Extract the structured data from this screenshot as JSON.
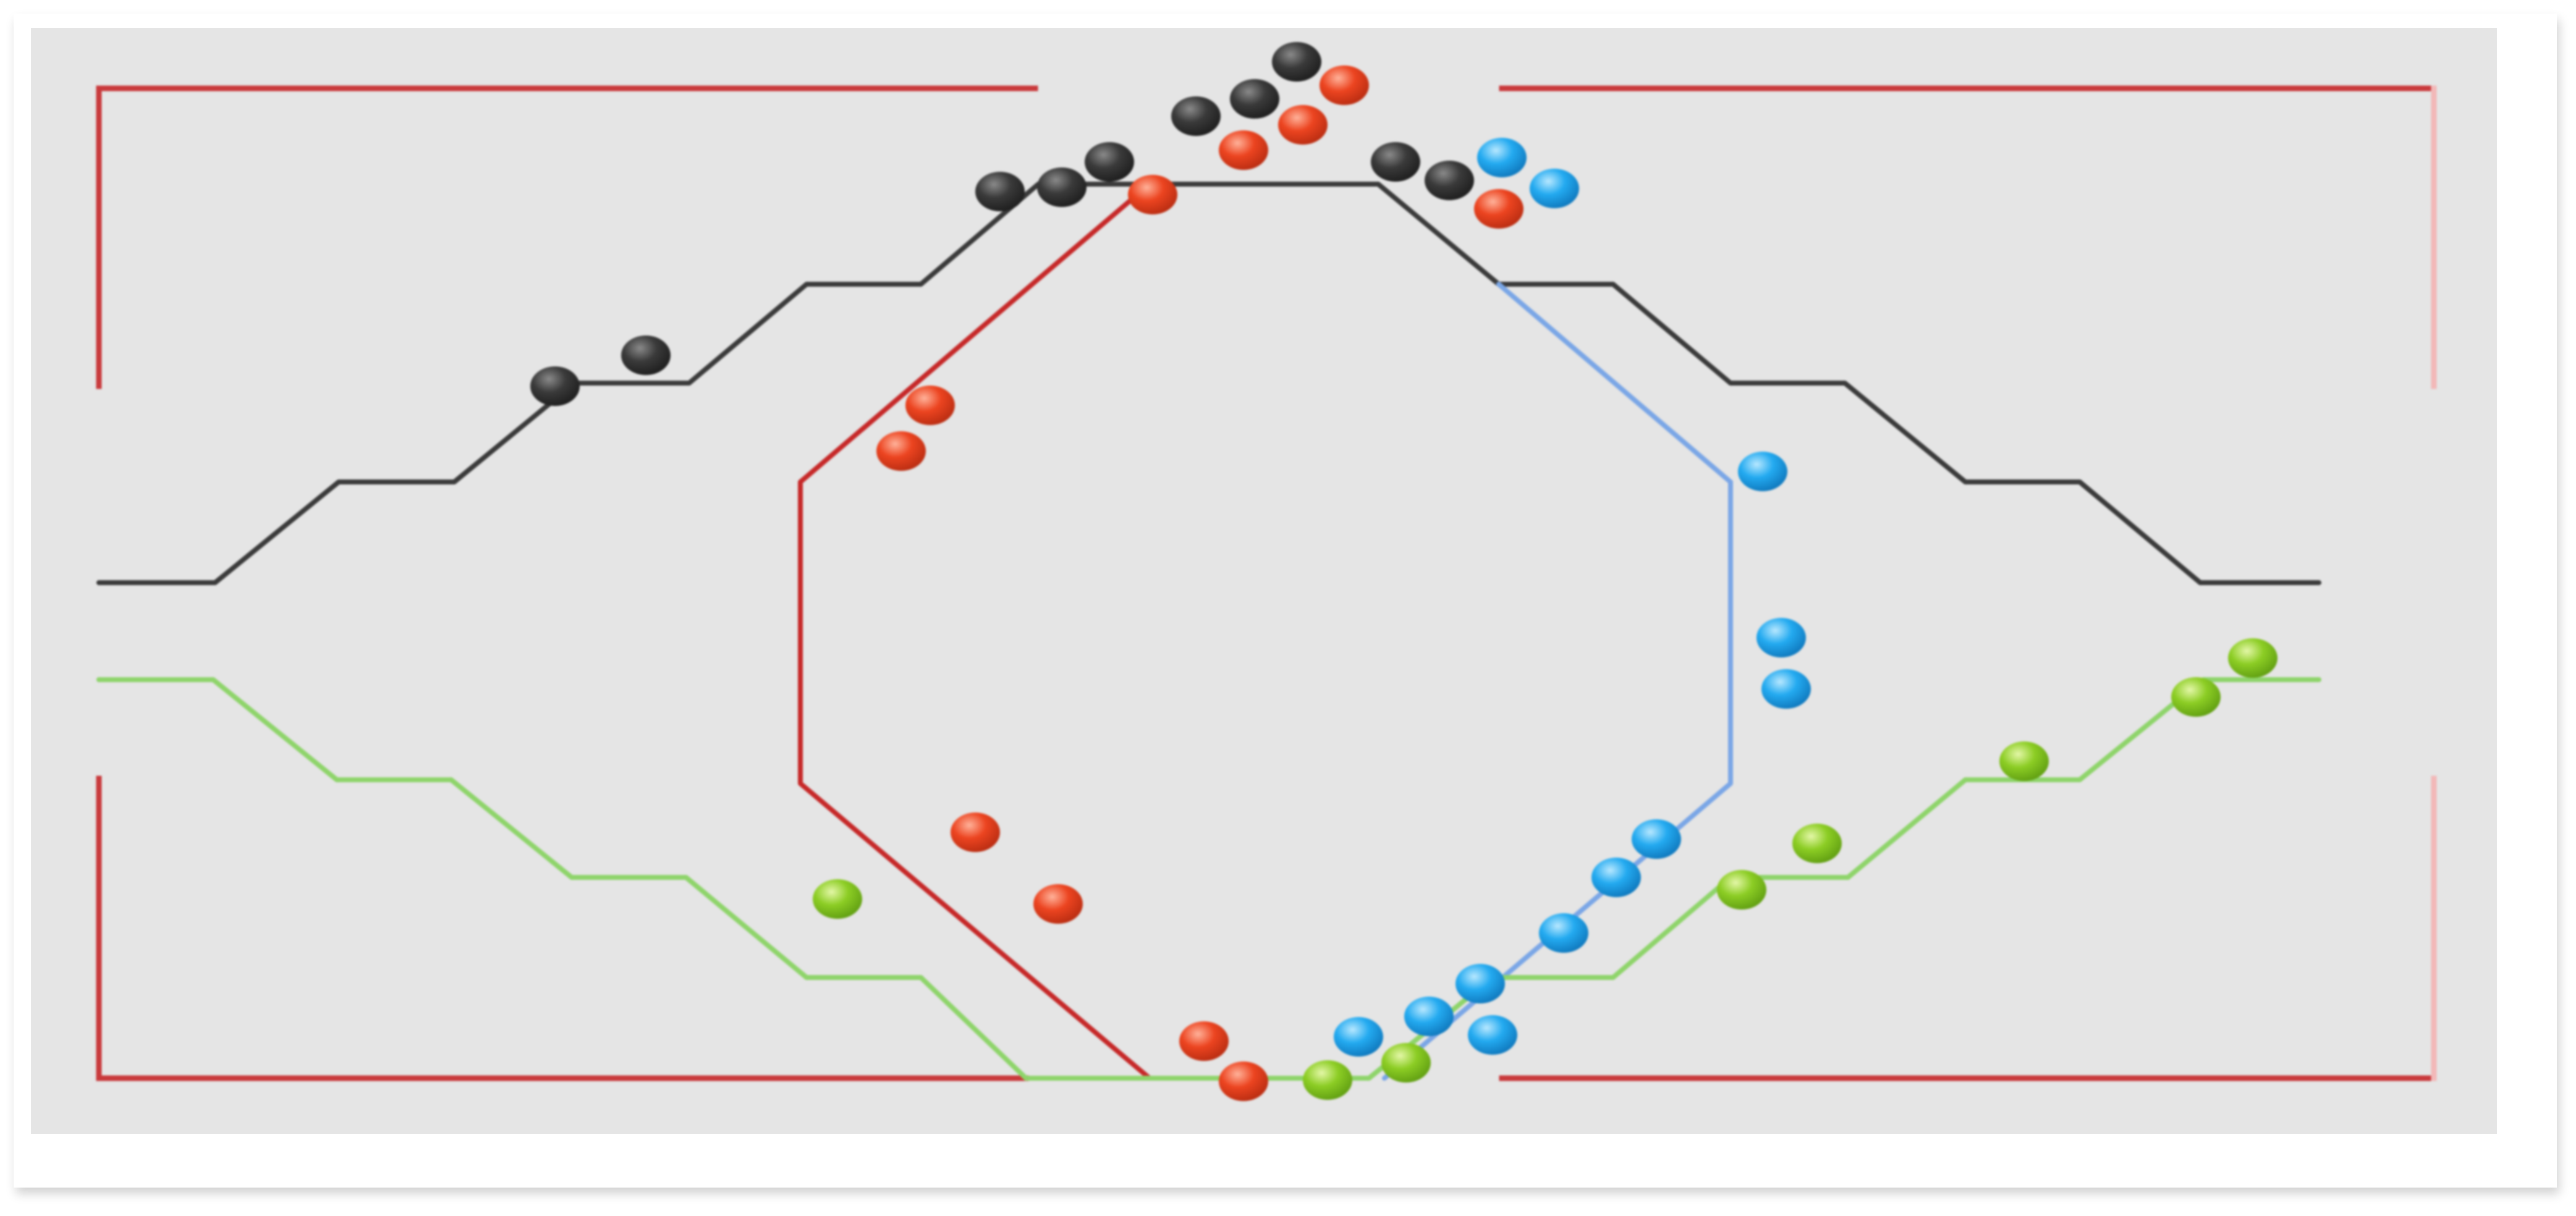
{
  "colors": {
    "background": "#ffffff",
    "panel": "#e5e5e5",
    "frame_line": "#c9393b",
    "frame_line_faint": "#f0b4b4",
    "black_track": "#3a3a3a",
    "red_track": "#c62828",
    "blue_track": "#7aa6e6",
    "green_track": "#8ed46a",
    "black_dot": "#2f2f2f",
    "red_dot": "#ea3d1d",
    "blue_dot": "#1fa6ee",
    "green_dot": "#86c922"
  },
  "icons": {
    "dot": "sphere-dot"
  }
}
